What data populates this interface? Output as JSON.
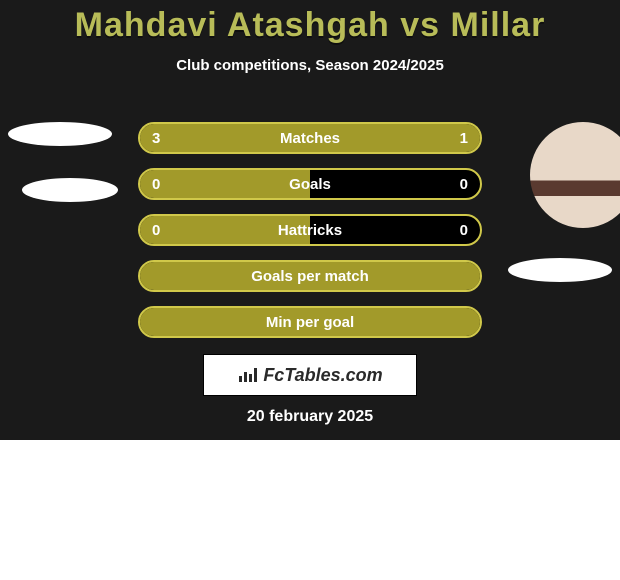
{
  "title": "Mahdavi Atashgah vs Millar",
  "subtitle": "Club competitions, Season 2024/2025",
  "date": "20 february 2025",
  "logo_text": "FcTables.com",
  "colors": {
    "panel_bg": "#1a1a1a",
    "bar_fill": "#a29a2a",
    "bar_border": "#d0c84a",
    "title": "#b8bc58",
    "text": "#ffffff",
    "disc": "#ffffff"
  },
  "bars": [
    {
      "label": "Matches",
      "left": "3",
      "right": "1",
      "left_pct": 75,
      "right_pct": 25
    },
    {
      "label": "Goals",
      "left": "0",
      "right": "0",
      "left_pct": 50,
      "right_pct": 0
    },
    {
      "label": "Hattricks",
      "left": "0",
      "right": "0",
      "left_pct": 50,
      "right_pct": 0
    },
    {
      "label": "Goals per match",
      "left": "",
      "right": "",
      "left_pct": 100,
      "right_pct": 0
    },
    {
      "label": "Min per goal",
      "left": "",
      "right": "",
      "left_pct": 100,
      "right_pct": 0
    }
  ]
}
